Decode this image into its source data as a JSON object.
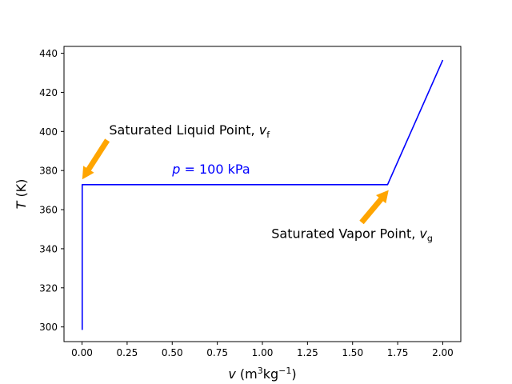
{
  "chart_data": {
    "type": "line",
    "title": "",
    "xlabel_symbol": "v",
    "xlabel_unit_pre": " (m",
    "xlabel_exp1": "3",
    "xlabel_unit_mid": "kg",
    "xlabel_exp2": "−1",
    "xlabel_unit_post": ")",
    "ylabel_symbol": "T",
    "ylabel_unit": " (K)",
    "xlim": [
      -0.1,
      2.1
    ],
    "ylim": [
      292.5,
      443.5
    ],
    "grid": false,
    "x_ticks": [
      0.0,
      0.25,
      0.5,
      0.75,
      1.0,
      1.25,
      1.5,
      1.75,
      2.0
    ],
    "x_tick_labels": [
      "0.00",
      "0.25",
      "0.50",
      "0.75",
      "1.00",
      "1.25",
      "1.50",
      "1.75",
      "2.00"
    ],
    "y_ticks": [
      300,
      320,
      340,
      360,
      380,
      400,
      420,
      440
    ],
    "y_tick_labels": [
      "300",
      "320",
      "340",
      "360",
      "380",
      "400",
      "420",
      "440"
    ],
    "series": [
      {
        "color": "#0000ff",
        "x": [
          0.001,
          0.001,
          1.694,
          2.0
        ],
        "y": [
          298.5,
          372.8,
          372.8,
          436.5
        ]
      }
    ],
    "annotations": [
      {
        "kind": "curve-label",
        "symbol": "p",
        "text": " = 100 kPa",
        "color": "#0000ff",
        "at": [
          0.5,
          378.5
        ]
      },
      {
        "kind": "arrow-label",
        "text": "Saturated Liquid Point, ",
        "symbol": "v",
        "subscript": "f",
        "color": "#000000",
        "arrow_color": "#ffa500",
        "text_at": [
          0.15,
          398.5
        ],
        "arrow_from": [
          0.14,
          395.5
        ],
        "arrow_to": [
          0.001,
          375.5
        ]
      },
      {
        "kind": "arrow-label",
        "text": "Saturated Vapor Point, ",
        "symbol": "v",
        "subscript": "g",
        "color": "#000000",
        "arrow_color": "#ffa500",
        "text_at": [
          1.05,
          345.5
        ],
        "arrow_from": [
          1.55,
          353.5
        ],
        "arrow_to": [
          1.7,
          370.0
        ]
      }
    ]
  }
}
